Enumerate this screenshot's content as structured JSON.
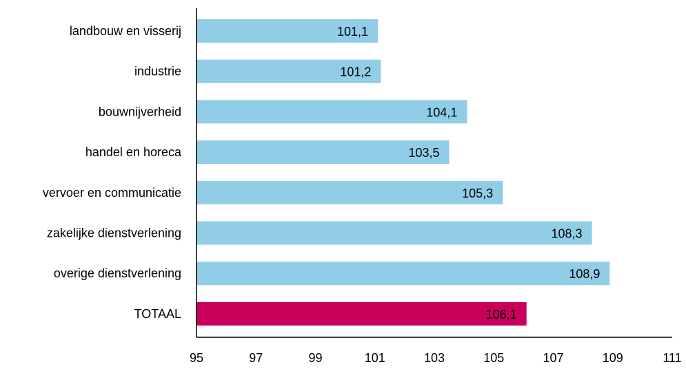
{
  "chart_data": {
    "type": "bar",
    "orientation": "horizontal",
    "title": "",
    "xlabel": "",
    "ylabel": "",
    "categories": [
      "landbouw en visserij",
      "industrie",
      "bouwnijverheid",
      "handel en horeca",
      "vervoer en communicatie",
      "zakelijke dienstverlening",
      "overige dienstverlening",
      "TOTAAL"
    ],
    "values": [
      101.1,
      101.2,
      104.1,
      103.5,
      105.3,
      108.3,
      108.9,
      106.1
    ],
    "value_labels": [
      "101,1",
      "101,2",
      "104,1",
      "103,5",
      "105,3",
      "108,3",
      "108,9",
      "106,1"
    ],
    "xlim": [
      95,
      111
    ],
    "x_ticks": [
      95,
      97,
      99,
      101,
      103,
      105,
      107,
      109,
      111
    ],
    "x_tick_labels": [
      "95",
      "97",
      "99",
      "101",
      "103",
      "105",
      "107",
      "109",
      "111"
    ],
    "grid": false,
    "legend": "none",
    "colors": {
      "bar": "#92CDE8",
      "highlight_bar": "#C8005A",
      "axis": "#000000",
      "label_on_bar": "#000000",
      "label_on_highlight": "#FFFFFF"
    },
    "highlight_category": "TOTAAL"
  }
}
